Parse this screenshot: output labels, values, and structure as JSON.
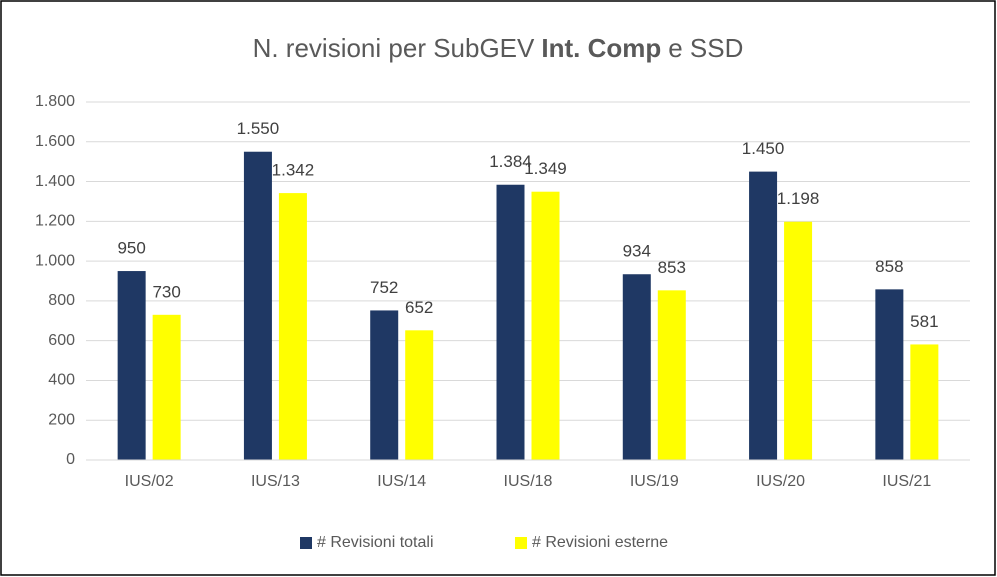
{
  "chart_data": {
    "type": "bar",
    "title_parts": [
      "N. revisioni per SubGEV",
      "Int. Comp",
      "e SSD"
    ],
    "categories": [
      "IUS/02",
      "IUS/13",
      "IUS/14",
      "IUS/18",
      "IUS/19",
      "IUS/20",
      "IUS/21"
    ],
    "series": [
      {
        "name": "# Revisioni totali",
        "color": "#1f3864",
        "values": [
          950,
          1550,
          752,
          1384,
          934,
          1450,
          858
        ],
        "value_labels": [
          "950",
          "1.550",
          "752",
          "1.384",
          "934",
          "1.450",
          "858"
        ]
      },
      {
        "name": "# Revisioni esterne",
        "color": "#ffff00",
        "values": [
          730,
          1342,
          652,
          1349,
          853,
          1198,
          581
        ],
        "value_labels": [
          "730",
          "1.342",
          "652",
          "1.349",
          "853",
          "1.198",
          "581"
        ]
      }
    ],
    "ylim": [
      0,
      1800
    ],
    "yticks": [
      0,
      200,
      400,
      600,
      800,
      {
        "value": 1000,
        "label": "1.000"
      },
      {
        "value": 1200,
        "label": "1.200"
      },
      {
        "value": 1400,
        "label": "1.400"
      },
      {
        "value": 1600,
        "label": "1.600"
      },
      {
        "value": 1800,
        "label": "1.800"
      }
    ],
    "grid": true,
    "legend": "bottom"
  }
}
